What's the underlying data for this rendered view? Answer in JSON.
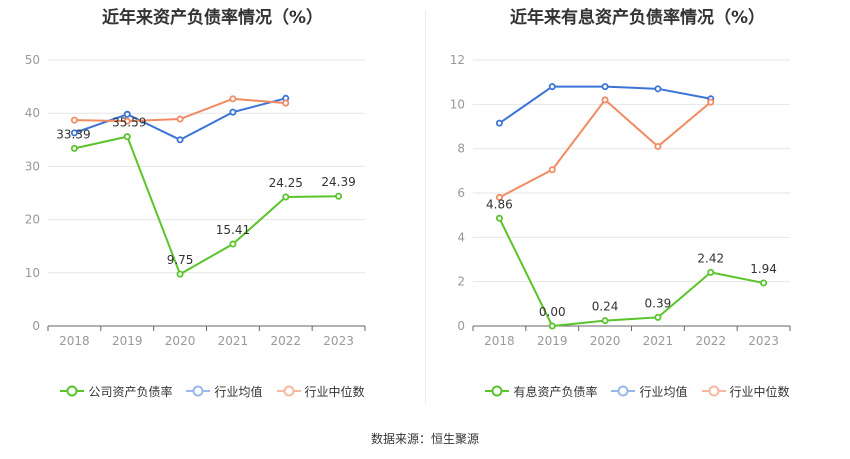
{
  "source_text": "数据来源：恒生聚源",
  "chart_data": [
    {
      "type": "line",
      "title": "近年来资产负债率情况（%）",
      "categories": [
        "2018",
        "2019",
        "2020",
        "2021",
        "2022",
        "2023"
      ],
      "ylim": [
        0,
        50
      ],
      "yticks": [
        0,
        10,
        20,
        30,
        40,
        50
      ],
      "grid": true,
      "legend_position": "bottom",
      "series": [
        {
          "name": "公司资产负债率",
          "color": "#5ac42c",
          "values": [
            33.39,
            35.59,
            9.75,
            15.41,
            24.25,
            24.39
          ],
          "labels": [
            "33.39",
            "35.59",
            "9.75",
            "15.41",
            "24.25",
            "24.39"
          ]
        },
        {
          "name": "行业均值",
          "color": "#3b73d6",
          "values": [
            36.3,
            39.8,
            35.0,
            40.2,
            42.8,
            null
          ]
        },
        {
          "name": "行业中位数",
          "color": "#f08b62",
          "values": [
            38.7,
            38.5,
            38.9,
            42.7,
            41.9,
            null
          ]
        }
      ]
    },
    {
      "type": "line",
      "title": "近年来有息资产负债率情况（%）",
      "categories": [
        "2018",
        "2019",
        "2020",
        "2021",
        "2022",
        "2023"
      ],
      "ylim": [
        0,
        12
      ],
      "yticks": [
        0,
        2,
        4,
        6,
        8,
        10,
        12
      ],
      "grid": true,
      "legend_position": "bottom",
      "series": [
        {
          "name": "有息资产负债率",
          "color": "#5ac42c",
          "values": [
            4.86,
            0.0,
            0.24,
            0.39,
            2.42,
            1.94
          ],
          "labels": [
            "4.86",
            "0.00",
            "0.24",
            "0.39",
            "2.42",
            "1.94"
          ]
        },
        {
          "name": "行业均值",
          "color": "#3b73d6",
          "values": [
            9.15,
            10.8,
            10.8,
            10.7,
            10.25,
            null
          ]
        },
        {
          "name": "行业中位数",
          "color": "#f08b62",
          "values": [
            5.8,
            7.05,
            10.2,
            8.1,
            10.1,
            null
          ]
        }
      ]
    }
  ]
}
